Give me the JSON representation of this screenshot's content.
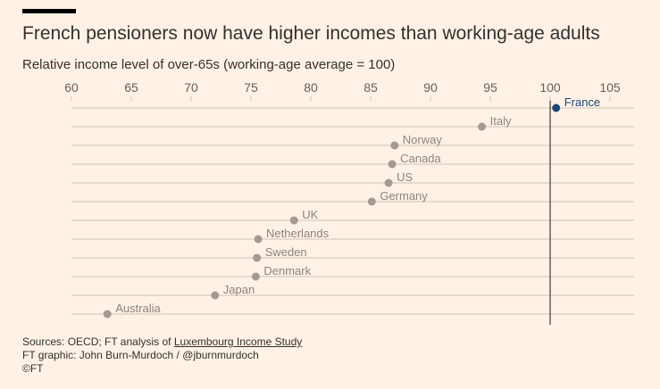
{
  "header": {
    "title": "French pensioners now have higher incomes than working-age adults",
    "subtitle": "Relative income level of over-65s (working-age average = 100)"
  },
  "chart_data": {
    "type": "scatter",
    "title": "French pensioners now have higher incomes than working-age adults",
    "subtitle": "Relative income level of over-65s (working-age average = 100)",
    "xlabel": "",
    "ylabel": "",
    "xlim": [
      60,
      107
    ],
    "x_ticks": [
      60,
      65,
      70,
      75,
      80,
      85,
      90,
      95,
      100,
      105
    ],
    "reference_line": 100,
    "grid": true,
    "points": [
      {
        "country": "France",
        "value": 100.5,
        "highlight": true
      },
      {
        "country": "Italy",
        "value": 94.3,
        "highlight": false
      },
      {
        "country": "Norway",
        "value": 87.0,
        "highlight": false
      },
      {
        "country": "Canada",
        "value": 86.8,
        "highlight": false
      },
      {
        "country": "US",
        "value": 86.5,
        "highlight": false
      },
      {
        "country": "Germany",
        "value": 85.1,
        "highlight": false
      },
      {
        "country": "UK",
        "value": 78.6,
        "highlight": false
      },
      {
        "country": "Netherlands",
        "value": 75.6,
        "highlight": false
      },
      {
        "country": "Sweden",
        "value": 75.5,
        "highlight": false
      },
      {
        "country": "Denmark",
        "value": 75.4,
        "highlight": false
      },
      {
        "country": "Japan",
        "value": 72.0,
        "highlight": false
      },
      {
        "country": "Australia",
        "value": 63.0,
        "highlight": false
      }
    ],
    "colors": {
      "default": "#a29a94",
      "highlight": "#1a4679",
      "grid": "#ccc1b7",
      "reference": "#66605c",
      "label": "#8a8580",
      "tick": "#66605c"
    }
  },
  "footer": {
    "sources_prefix": "Sources: OECD; FT analysis of ",
    "sources_link": "Luxembourg Income Study",
    "graphic": "FT graphic: John Burn-Murdoch / @jburnmurdoch",
    "copyright": "©FT"
  }
}
